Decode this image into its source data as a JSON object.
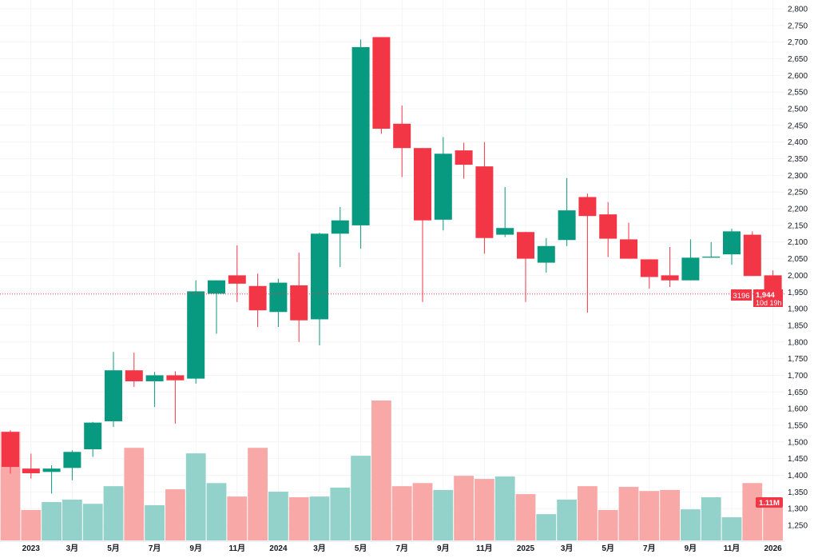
{
  "chart_data": {
    "type": "candlestick",
    "interval": "monthly",
    "categories": [
      "2022-12",
      "2023-01",
      "2023-02",
      "2023-03",
      "2023-04",
      "2023-05",
      "2023-06",
      "2023-07",
      "2023-08",
      "2023-09",
      "2023-10",
      "2023-11",
      "2023-12",
      "2024-01",
      "2024-02",
      "2024-03",
      "2024-04",
      "2024-05",
      "2024-06",
      "2024-07",
      "2024-08",
      "2024-09",
      "2024-10",
      "2024-11",
      "2024-12",
      "2025-01",
      "2025-02",
      "2025-03",
      "2025-04",
      "2025-05",
      "2025-06",
      "2025-07",
      "2025-08",
      "2025-09",
      "2025-10",
      "2025-11",
      "2025-12",
      "2026-01"
    ],
    "ohlc": [
      [
        1530,
        1535,
        1405,
        1425
      ],
      [
        1420,
        1465,
        1390,
        1406
      ],
      [
        1410,
        1430,
        1345,
        1420
      ],
      [
        1422,
        1475,
        1385,
        1470
      ],
      [
        1478,
        1560,
        1455,
        1558
      ],
      [
        1562,
        1770,
        1545,
        1715
      ],
      [
        1715,
        1768,
        1665,
        1682
      ],
      [
        1682,
        1710,
        1605,
        1700
      ],
      [
        1700,
        1712,
        1555,
        1685
      ],
      [
        1690,
        1985,
        1675,
        1952
      ],
      [
        1945,
        1985,
        1825,
        1985
      ],
      [
        2000,
        2090,
        1920,
        1975
      ],
      [
        1968,
        2005,
        1845,
        1895
      ],
      [
        1890,
        1990,
        1845,
        1978
      ],
      [
        1970,
        2068,
        1800,
        1865
      ],
      [
        1868,
        2128,
        1790,
        2125
      ],
      [
        2125,
        2205,
        2025,
        2165
      ],
      [
        2150,
        2708,
        2080,
        2685
      ],
      [
        2715,
        2715,
        2425,
        2440
      ],
      [
        2455,
        2510,
        2295,
        2382
      ],
      [
        2382,
        2382,
        1920,
        2165
      ],
      [
        2167,
        2415,
        2135,
        2365
      ],
      [
        2375,
        2398,
        2290,
        2332
      ],
      [
        2327,
        2400,
        2065,
        2112
      ],
      [
        2122,
        2265,
        2115,
        2142
      ],
      [
        2130,
        2130,
        1920,
        2050
      ],
      [
        2038,
        2112,
        2008,
        2088
      ],
      [
        2106,
        2292,
        2088,
        2195
      ],
      [
        2235,
        2245,
        1888,
        2178
      ],
      [
        2183,
        2220,
        2055,
        2110
      ],
      [
        2108,
        2158,
        2050,
        2050
      ],
      [
        2048,
        2048,
        1960,
        1995
      ],
      [
        2000,
        2085,
        1965,
        1985
      ],
      [
        1985,
        2108,
        1985,
        2053
      ],
      [
        2053,
        2100,
        2053,
        2056
      ],
      [
        2063,
        2140,
        2032,
        2132
      ],
      [
        2122,
        2132,
        1998,
        1998
      ],
      [
        2000,
        2015,
        1944,
        1944
      ]
    ],
    "volume_millions": [
      3.15,
      0.88,
      1.11,
      1.18,
      1.06,
      1.57,
      2.68,
      1.02,
      1.48,
      2.52,
      1.66,
      1.27,
      2.68,
      1.41,
      1.25,
      1.27,
      1.53,
      2.45,
      4.05,
      1.57,
      1.66,
      1.46,
      1.87,
      1.78,
      1.85,
      1.34,
      0.76,
      1.18,
      1.57,
      0.88,
      1.55,
      1.43,
      1.46,
      0.9,
      1.25,
      0.67,
      1.66,
      1.11
    ],
    "ylim": [
      1250,
      2800
    ],
    "y_ticks": [
      "2,800",
      "2,750",
      "2,700",
      "2,650",
      "2,600",
      "2,550",
      "2,500",
      "2,450",
      "2,400",
      "2,350",
      "2,300",
      "2,250",
      "2,200",
      "2,150",
      "2,100",
      "2,050",
      "2,000",
      "1,950",
      "1,900",
      "1,850",
      "1,800",
      "1,750",
      "1,700",
      "1,650",
      "1,600",
      "1,550",
      "1,500",
      "1,450",
      "1,400",
      "1,350",
      "1,300",
      "1,250"
    ],
    "x_labels": [
      {
        "month": "2023-01",
        "label": "2023"
      },
      {
        "month": "2023-03",
        "label": "3月"
      },
      {
        "month": "2023-05",
        "label": "5月"
      },
      {
        "month": "2023-07",
        "label": "7月"
      },
      {
        "month": "2023-09",
        "label": "9月"
      },
      {
        "month": "2023-11",
        "label": "11月"
      },
      {
        "month": "2024-01",
        "label": "2024"
      },
      {
        "month": "2024-03",
        "label": "3月"
      },
      {
        "month": "2024-05",
        "label": "5月"
      },
      {
        "month": "2024-07",
        "label": "7月"
      },
      {
        "month": "2024-09",
        "label": "9月"
      },
      {
        "month": "2024-11",
        "label": "11月"
      },
      {
        "month": "2025-01",
        "label": "2025"
      },
      {
        "month": "2025-03",
        "label": "3月"
      },
      {
        "month": "2025-05",
        "label": "5月"
      },
      {
        "month": "2025-07",
        "label": "7月"
      },
      {
        "month": "2025-09",
        "label": "9月"
      },
      {
        "month": "2025-11",
        "label": "11月"
      },
      {
        "month": "2026-01",
        "label": "2026"
      }
    ],
    "last_price": 1944,
    "last_price_label": "1,944",
    "countdown_label": "10d 19h",
    "left_badge_label": "3196",
    "volume_label": "1.11M",
    "colors": {
      "up": "#089981",
      "down": "#f23645",
      "up_volume": "#92d2ca",
      "down_volume": "#f7a8a7"
    }
  }
}
